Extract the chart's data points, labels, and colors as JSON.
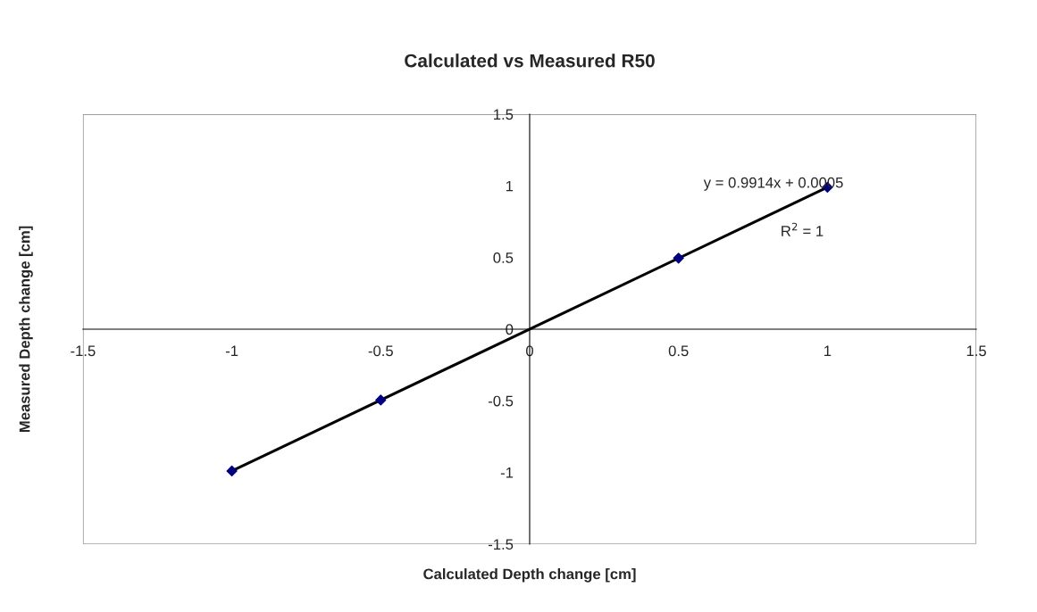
{
  "chart_data": {
    "type": "scatter",
    "title": "Calculated vs Measured R50",
    "xlabel": "Calculated Depth change [cm]",
    "ylabel": "Measured Depth change [cm]",
    "series": [
      {
        "type": "scatter",
        "color": "#000080",
        "marker": "diamond",
        "x": [
          -1,
          -0.5,
          0.5,
          1
        ],
        "values": [
          -0.99,
          -0.495,
          0.496,
          0.99
        ]
      },
      {
        "type": "line",
        "color": "#000000",
        "marker": "none",
        "line_style": "solid",
        "x": [
          -1,
          1
        ],
        "values": [
          -0.99,
          0.99
        ]
      }
    ],
    "annotations": [
      "y = 0.9914x + 0.0005",
      "R$^{2}$ = 1"
    ],
    "xlim": [
      -1.5,
      1.5
    ],
    "xticks": [
      -1.5,
      -1,
      -0.5,
      0,
      0.5,
      1,
      1.5
    ],
    "ylim": [
      -1.5,
      1.5
    ],
    "yticks": [
      -1.5,
      -1,
      -0.5,
      0,
      0.5,
      1,
      1.5
    ],
    "grid": false,
    "legend": false
  }
}
